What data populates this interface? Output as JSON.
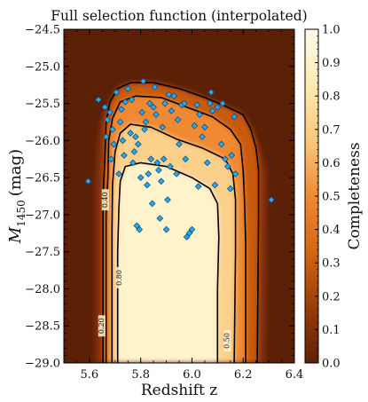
{
  "chart_data": {
    "type": "heatmap",
    "title": "Full selection function (interpolated)",
    "xlabel": "Redshift z",
    "ylabel_main": "M",
    "ylabel_sub": "1450",
    "ylabel_unit": "(mag)",
    "xlim": [
      5.5,
      6.4
    ],
    "ylim": [
      -24.5,
      -29.0
    ],
    "x_ticks": [
      5.6,
      5.8,
      6.0,
      6.2,
      6.4
    ],
    "x_tick_labels": [
      "5.6",
      "5.8",
      "6.0",
      "6.2",
      "6.4"
    ],
    "y_ticks": [
      -24.5,
      -25.0,
      -25.5,
      -26.0,
      -26.5,
      -27.0,
      -27.5,
      -28.0,
      -28.5,
      -29.0
    ],
    "y_tick_labels": [
      "−24.5",
      "−25.0",
      "−25.5",
      "−26.0",
      "−26.5",
      "−27.0",
      "−27.5",
      "−28.0",
      "−28.5",
      "−29.0"
    ],
    "colorbar": {
      "label": "Completeness",
      "range": [
        0.0,
        1.0
      ],
      "ticks": [
        0.0,
        0.1,
        0.2,
        0.3,
        0.4,
        0.5,
        0.6,
        0.7,
        0.8,
        0.9,
        1.0
      ],
      "tick_labels": [
        "0.0",
        "0.1",
        "0.2",
        "0.3",
        "0.4",
        "0.5",
        "0.6",
        "0.7",
        "0.8",
        "0.9",
        "1.0"
      ],
      "colormap": [
        "#5c2006",
        "#983c0a",
        "#d6660e",
        "#f08a30",
        "#f9c77c",
        "#fdebb4",
        "#fffbe8"
      ]
    },
    "contours": [
      {
        "level_label": "0.20",
        "level": 0.2,
        "points": [
          [
            5.653,
            -29.0
          ],
          [
            5.653,
            -26.75
          ],
          [
            5.66,
            -26.25
          ],
          [
            5.665,
            -25.75
          ],
          [
            5.68,
            -25.48
          ],
          [
            5.71,
            -25.3
          ],
          [
            5.76,
            -25.22
          ],
          [
            5.85,
            -25.22
          ],
          [
            5.95,
            -25.3
          ],
          [
            6.05,
            -25.42
          ],
          [
            6.12,
            -25.52
          ],
          [
            6.2,
            -25.65
          ],
          [
            6.23,
            -25.85
          ],
          [
            6.25,
            -26.1
          ],
          [
            6.26,
            -26.4
          ],
          [
            6.26,
            -27.0
          ],
          [
            6.255,
            -29.0
          ]
        ],
        "label_at": [
          5.648,
          -28.5
        ]
      },
      {
        "level_label": "0.40",
        "level": 0.4,
        "points": [
          [
            5.665,
            -29.0
          ],
          [
            5.665,
            -27.0
          ],
          [
            5.672,
            -26.5
          ],
          [
            5.675,
            -26.0
          ],
          [
            5.69,
            -25.7
          ],
          [
            5.72,
            -25.48
          ],
          [
            5.78,
            -25.4
          ],
          [
            5.88,
            -25.42
          ],
          [
            5.98,
            -25.55
          ],
          [
            6.08,
            -25.68
          ],
          [
            6.15,
            -25.85
          ],
          [
            6.19,
            -26.05
          ],
          [
            6.2,
            -26.4
          ],
          [
            6.205,
            -26.8
          ],
          [
            6.21,
            -27.4
          ],
          [
            6.21,
            -29.0
          ]
        ],
        "label_at": [
          5.662,
          -26.8
        ]
      },
      {
        "level_label": "0.50",
        "level": 0.5,
        "points": [
          [
            5.688,
            -29.0
          ],
          [
            5.688,
            -27.2
          ],
          [
            5.69,
            -26.6
          ],
          [
            5.7,
            -26.15
          ],
          [
            5.72,
            -25.9
          ],
          [
            5.76,
            -25.78
          ],
          [
            5.84,
            -25.82
          ],
          [
            5.94,
            -25.98
          ],
          [
            6.04,
            -26.1
          ],
          [
            6.13,
            -26.25
          ],
          [
            6.16,
            -26.45
          ],
          [
            6.17,
            -26.8
          ],
          [
            6.17,
            -27.5
          ],
          [
            6.165,
            -29.0
          ]
        ],
        "label_at": [
          6.138,
          -28.7
        ]
      },
      {
        "level_label": "0.80",
        "level": 0.8,
        "points": [
          [
            5.71,
            -29.0
          ],
          [
            5.71,
            -27.5
          ],
          [
            5.715,
            -26.9
          ],
          [
            5.72,
            -26.55
          ],
          [
            5.74,
            -26.35
          ],
          [
            5.8,
            -26.3
          ],
          [
            5.9,
            -26.35
          ],
          [
            6.0,
            -26.5
          ],
          [
            6.07,
            -26.65
          ],
          [
            6.1,
            -26.85
          ],
          [
            6.105,
            -27.3
          ],
          [
            6.1,
            -28.0
          ],
          [
            6.1,
            -29.0
          ]
        ],
        "label_at": [
          5.718,
          -27.85
        ]
      }
    ],
    "points": [
      [
        5.595,
        -26.55
      ],
      [
        5.635,
        -25.45
      ],
      [
        5.66,
        -25.55
      ],
      [
        5.665,
        -25.95
      ],
      [
        5.67,
        -25.72
      ],
      [
        5.68,
        -25.62
      ],
      [
        5.685,
        -26.25
      ],
      [
        5.69,
        -25.85
      ],
      [
        5.695,
        -26.05
      ],
      [
        5.705,
        -25.35
      ],
      [
        5.715,
        -26.45
      ],
      [
        5.72,
        -25.75
      ],
      [
        5.725,
        -25.58
      ],
      [
        5.73,
        -26.0
      ],
      [
        5.735,
        -26.2
      ],
      [
        5.74,
        -25.48
      ],
      [
        5.75,
        -25.3
      ],
      [
        5.76,
        -25.9
      ],
      [
        5.765,
        -25.45
      ],
      [
        5.77,
        -26.3
      ],
      [
        5.775,
        -26.15
      ],
      [
        5.78,
        -25.95
      ],
      [
        5.785,
        -27.15
      ],
      [
        5.79,
        -26.05
      ],
      [
        5.795,
        -27.2
      ],
      [
        5.8,
        -26.5
      ],
      [
        5.805,
        -25.62
      ],
      [
        5.81,
        -25.2
      ],
      [
        5.815,
        -25.85
      ],
      [
        5.82,
        -25.75
      ],
      [
        5.825,
        -26.6
      ],
      [
        5.83,
        -26.45
      ],
      [
        5.835,
        -25.5
      ],
      [
        5.84,
        -26.25
      ],
      [
        5.845,
        -26.85
      ],
      [
        5.85,
        -25.55
      ],
      [
        5.855,
        -25.28
      ],
      [
        5.86,
        -25.65
      ],
      [
        5.865,
        -26.3
      ],
      [
        5.87,
        -26.4
      ],
      [
        5.875,
        -27.05
      ],
      [
        5.88,
        -26.55
      ],
      [
        5.885,
        -25.82
      ],
      [
        5.89,
        -26.25
      ],
      [
        5.895,
        -25.5
      ],
      [
        5.9,
        -27.2
      ],
      [
        5.905,
        -26.8
      ],
      [
        5.91,
        -25.38
      ],
      [
        5.915,
        -26.35
      ],
      [
        5.92,
        -25.6
      ],
      [
        5.93,
        -25.4
      ],
      [
        5.94,
        -26.45
      ],
      [
        5.945,
        -25.72
      ],
      [
        5.95,
        -26.05
      ],
      [
        5.96,
        -25.52
      ],
      [
        5.97,
        -25.5
      ],
      [
        5.975,
        -26.25
      ],
      [
        5.98,
        -27.3
      ],
      [
        5.99,
        -27.25
      ],
      [
        6.0,
        -27.2
      ],
      [
        6.01,
        -25.8
      ],
      [
        6.02,
        -25.52
      ],
      [
        6.025,
        -26.62
      ],
      [
        6.03,
        -25.65
      ],
      [
        6.04,
        -25.95
      ],
      [
        6.05,
        -25.82
      ],
      [
        6.06,
        -26.3
      ],
      [
        6.07,
        -25.5
      ],
      [
        6.075,
        -25.35
      ],
      [
        6.08,
        -25.6
      ],
      [
        6.09,
        -26.6
      ],
      [
        6.1,
        -25.55
      ],
      [
        6.115,
        -26.05
      ],
      [
        6.12,
        -25.5
      ],
      [
        6.13,
        -26.25
      ],
      [
        6.14,
        -26.35
      ],
      [
        6.15,
        -26.65
      ],
      [
        6.155,
        -26.2
      ],
      [
        6.165,
        -25.68
      ],
      [
        6.17,
        -26.45
      ],
      [
        6.31,
        -26.8
      ]
    ]
  }
}
